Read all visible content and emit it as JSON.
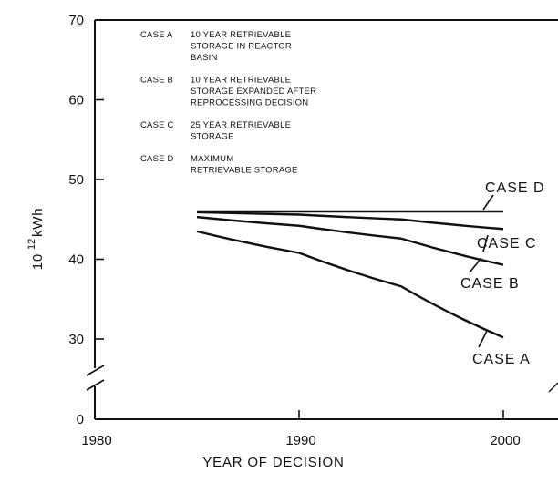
{
  "chart_data": {
    "type": "line",
    "xlabel": "YEAR OF DECISION",
    "ylabel": {
      "base": "10",
      "exponent": "12",
      "unit": "kWh"
    },
    "xlim": [
      1980,
      2003
    ],
    "ylim": [
      0,
      70
    ],
    "axis_break": "between 0 and 30",
    "x_ticks": [
      1980,
      1990,
      2000
    ],
    "y_ticks": [
      0,
      30,
      40,
      50,
      60,
      70
    ],
    "grid": false,
    "legend": [
      {
        "key": "CASE A",
        "lines": [
          "10 YEAR RETRIEVABLE",
          "STORAGE IN REACTOR",
          "BASIN"
        ]
      },
      {
        "key": "CASE B",
        "lines": [
          "10 YEAR RETRIEVABLE",
          "STORAGE EXPANDED AFTER",
          "REPROCESSING DECISION"
        ]
      },
      {
        "key": "CASE C",
        "lines": [
          "25 YEAR RETRIEVABLE",
          "STORAGE"
        ]
      },
      {
        "key": "CASE D",
        "lines": [
          "MAXIMUM",
          "RETRIEVABLE STORAGE"
        ]
      }
    ],
    "series": [
      {
        "name": "CASE D",
        "x": [
          1985,
          1990,
          1995,
          2000
        ],
        "y": [
          46.0,
          46.0,
          46.0,
          46.0
        ]
      },
      {
        "name": "CASE C",
        "x": [
          1985,
          1990,
          1995,
          2000
        ],
        "y": [
          45.9,
          45.6,
          45.0,
          43.8
        ]
      },
      {
        "name": "CASE B",
        "x": [
          1985,
          1990,
          1995,
          2000
        ],
        "y": [
          45.3,
          44.2,
          42.6,
          39.3
        ]
      },
      {
        "name": "CASE A",
        "x": [
          1985,
          1990,
          1995,
          2000
        ],
        "y": [
          43.5,
          40.8,
          36.6,
          30.2
        ]
      }
    ],
    "curve_labels": [
      {
        "series": "CASE D",
        "text": "CASE D"
      },
      {
        "series": "CASE C",
        "text": "CASE C"
      },
      {
        "series": "CASE B",
        "text": "CASE B"
      },
      {
        "series": "CASE A",
        "text": "CASE A"
      }
    ],
    "line_color": "#111111"
  }
}
